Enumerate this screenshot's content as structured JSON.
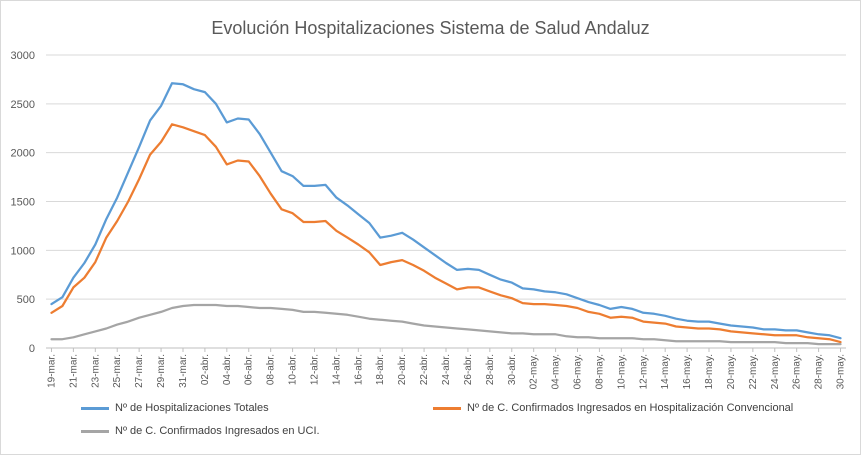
{
  "chart_data": {
    "type": "line",
    "title": "Evolución Hospitalizaciones Sistema de Salud Andaluz",
    "ylim": [
      0,
      3000
    ],
    "y_ticks": [
      0,
      500,
      1000,
      1500,
      2000,
      2500,
      3000
    ],
    "grid": "horizontal",
    "legend_position": "bottom",
    "x_tick_labels": [
      "19-mar.",
      "21-mar.",
      "23-mar.",
      "25-mar.",
      "27-mar.",
      "29-mar.",
      "31-mar.",
      "02-abr.",
      "04-abr.",
      "06-abr.",
      "08-abr.",
      "10-abr.",
      "12-abr.",
      "14-abr.",
      "16-abr.",
      "18-abr.",
      "20-abr.",
      "22-abr.",
      "24-abr.",
      "26-abr.",
      "28-abr.",
      "30-abr.",
      "02-may.",
      "04-may.",
      "06-may.",
      "08-may.",
      "10-may.",
      "12-may.",
      "14-may.",
      "16-may.",
      "18-may.",
      "20-may.",
      "22-may.",
      "24-may.",
      "26-may.",
      "28-may.",
      "30-may."
    ],
    "series": [
      {
        "name": "Nº de Hospitalizaciones Totales",
        "color": "#5b9bd5",
        "values": [
          450,
          520,
          720,
          870,
          1060,
          1320,
          1540,
          1800,
          2060,
          2330,
          2480,
          2710,
          2700,
          2650,
          2620,
          2500,
          2310,
          2350,
          2340,
          2190,
          2000,
          1810,
          1760,
          1660,
          1660,
          1670,
          1540,
          1460,
          1370,
          1280,
          1130,
          1150,
          1180,
          1110,
          1030,
          950,
          870,
          800,
          810,
          800,
          750,
          700,
          670,
          610,
          600,
          580,
          570,
          550,
          510,
          470,
          440,
          400,
          420,
          400,
          360,
          350,
          330,
          300,
          280,
          270,
          270,
          250,
          230,
          220,
          210,
          190,
          190,
          180,
          180,
          160,
          140,
          130,
          100
        ]
      },
      {
        "name": "Nº de C. Confirmados Ingresados en Hospitalización Convencional",
        "color": "#ed7d31",
        "values": [
          360,
          430,
          620,
          720,
          880,
          1130,
          1300,
          1500,
          1730,
          1980,
          2110,
          2290,
          2260,
          2220,
          2180,
          2060,
          1880,
          1920,
          1910,
          1760,
          1580,
          1420,
          1380,
          1290,
          1290,
          1300,
          1200,
          1130,
          1060,
          980,
          850,
          880,
          900,
          850,
          790,
          720,
          660,
          600,
          620,
          620,
          580,
          540,
          510,
          460,
          450,
          450,
          440,
          430,
          410,
          370,
          350,
          310,
          320,
          310,
          270,
          260,
          250,
          220,
          210,
          200,
          200,
          190,
          170,
          160,
          150,
          140,
          130,
          130,
          130,
          110,
          100,
          90,
          60
        ]
      },
      {
        "name": "Nº de C. Confirmados Ingresados en UCI.",
        "color": "#a5a5a5",
        "values": [
          90,
          90,
          110,
          140,
          170,
          200,
          240,
          270,
          310,
          340,
          370,
          410,
          430,
          440,
          440,
          440,
          430,
          430,
          420,
          410,
          410,
          400,
          390,
          370,
          370,
          360,
          350,
          340,
          320,
          300,
          290,
          280,
          270,
          250,
          230,
          220,
          210,
          200,
          190,
          180,
          170,
          160,
          150,
          150,
          140,
          140,
          140,
          120,
          110,
          110,
          100,
          100,
          100,
          100,
          90,
          90,
          80,
          70,
          70,
          70,
          70,
          70,
          60,
          60,
          60,
          60,
          60,
          50,
          50,
          50,
          40,
          40,
          40
        ]
      }
    ]
  }
}
